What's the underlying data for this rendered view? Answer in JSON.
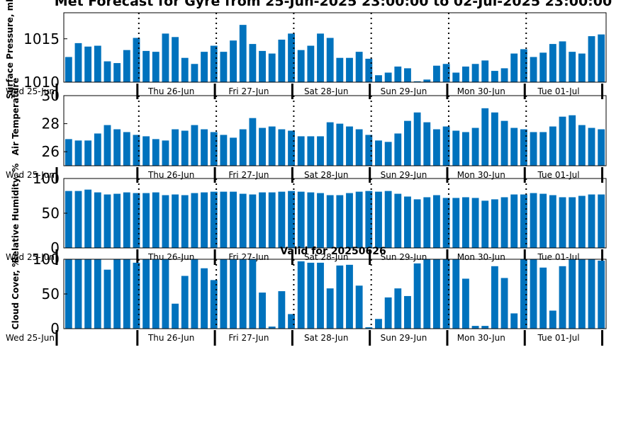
{
  "title": "Met Forecast for Gyre from 25-Jun-2025 23:00:00 to 02-Jul-2025 23:00:00",
  "colors": {
    "bar": "#0072bd",
    "separator": "#000000"
  },
  "day_labels": [
    "Wed 25-Jun",
    "Thu 26-Jun",
    "Fri 27-Jun",
    "Sat 28-Jun",
    "Sun 29-Jun",
    "Mon 30-Jun",
    "Tue 01-Jul"
  ],
  "chart_data": [
    {
      "type": "bar",
      "ylabel": "Surface Pressure, mb",
      "ylim": [
        1010,
        1018
      ],
      "yticks": [
        1010,
        1015
      ],
      "grid": false,
      "values": [
        1012.9,
        1014.5,
        1014.1,
        1014.2,
        1012.4,
        1012.2,
        1013.7,
        1015.1,
        1013.6,
        1013.5,
        1015.6,
        1015.2,
        1012.8,
        1012.1,
        1013.5,
        1014.2,
        1013.5,
        1014.8,
        1016.6,
        1014.4,
        1013.6,
        1013.3,
        1014.9,
        1015.6,
        1013.7,
        1014.2,
        1015.6,
        1015.1,
        1012.8,
        1012.8,
        1013.5,
        1012.7,
        1010.8,
        1011.1,
        1011.8,
        1011.6,
        1010.1,
        1010.3,
        1011.9,
        1012.1,
        1011.1,
        1011.8,
        1012.1,
        1012.5,
        1011.3,
        1011.6,
        1013.3,
        1013.8,
        1012.9,
        1013.4,
        1014.4,
        1014.7,
        1013.5,
        1013.3,
        1015.3,
        1015.5
      ]
    },
    {
      "type": "bar",
      "ylabel": "Air Temperature",
      "ylim": [
        25,
        30
      ],
      "yticks": [
        26,
        28,
        30
      ],
      "grid": false,
      "values": [
        26.9,
        26.8,
        26.8,
        27.3,
        27.9,
        27.6,
        27.4,
        27.2,
        27.1,
        26.9,
        26.8,
        27.6,
        27.5,
        27.9,
        27.6,
        27.4,
        27.2,
        27.0,
        27.6,
        28.4,
        27.7,
        27.8,
        27.6,
        27.5,
        27.1,
        27.1,
        27.1,
        28.1,
        28.0,
        27.8,
        27.6,
        27.2,
        26.8,
        26.7,
        27.3,
        28.2,
        28.8,
        28.1,
        27.6,
        27.8,
        27.5,
        27.4,
        27.7,
        29.1,
        28.8,
        28.2,
        27.7,
        27.6,
        27.4,
        27.4,
        27.8,
        28.5,
        28.6,
        27.9,
        27.7,
        27.6
      ]
    },
    {
      "type": "bar",
      "ylabel": "Relative Humidity, %",
      "ylim": [
        0,
        100
      ],
      "yticks": [
        0,
        50,
        100
      ],
      "grid": false,
      "values": [
        82,
        82,
        84,
        80,
        77,
        78,
        80,
        79,
        79,
        80,
        76,
        77,
        76,
        79,
        80,
        81,
        81,
        81,
        78,
        77,
        80,
        80,
        81,
        82,
        81,
        80,
        79,
        76,
        76,
        79,
        81,
        82,
        81,
        82,
        78,
        74,
        70,
        73,
        76,
        72,
        72,
        73,
        72,
        68,
        70,
        73,
        77,
        77,
        79,
        78,
        76,
        73,
        73,
        75,
        77,
        77
      ]
    },
    {
      "type": "bar",
      "title": "Valid for 20250626",
      "ylabel": "Cloud Cover, %",
      "ylim": [
        0,
        100
      ],
      "yticks": [
        0,
        50,
        100
      ],
      "grid": false,
      "values": [
        100,
        100,
        100,
        100,
        85,
        100,
        100,
        95,
        100,
        100,
        100,
        36,
        76,
        100,
        87,
        70,
        100,
        100,
        100,
        100,
        52,
        3,
        54,
        21,
        97,
        95,
        95,
        58,
        91,
        92,
        62,
        2,
        14,
        45,
        58,
        47,
        94,
        100,
        100,
        100,
        100,
        72,
        4,
        4,
        90,
        73,
        22,
        100,
        100,
        88,
        26,
        90,
        100,
        100,
        100,
        98
      ]
    }
  ]
}
